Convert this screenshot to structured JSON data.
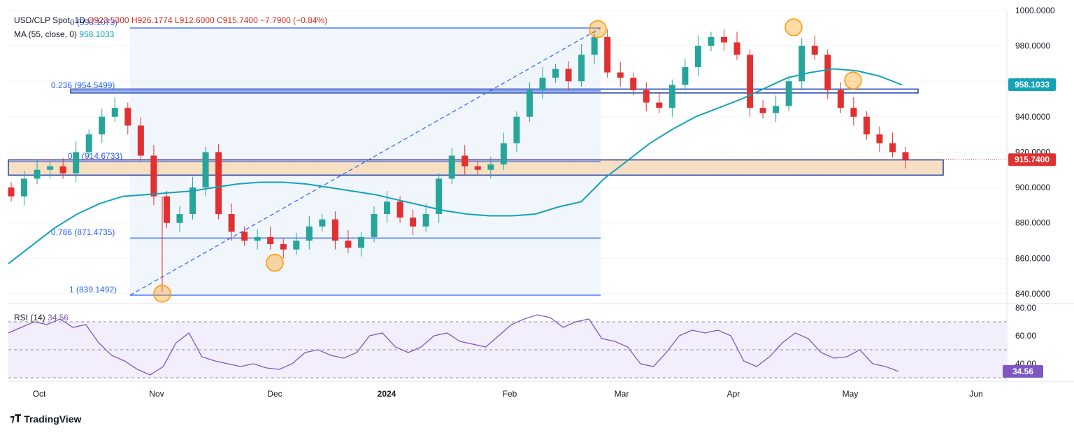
{
  "header": {
    "symbol": "USD/CLP Spot, 1D",
    "open": "O923.5300",
    "high": "H926.1774",
    "low": "L912.6000",
    "close": "C915.7400",
    "change": "−7.7900 (−0.84%)",
    "ma_label": "MA (55, close, 0)",
    "ma_value": "958.1033",
    "rsi_label": "RSI (14)",
    "rsi_value": "34.56"
  },
  "branding": {
    "name": "TradingView"
  },
  "colors": {
    "up": "#26a69a",
    "down": "#e03030",
    "ma": "#12a3b8",
    "rsi": "#7e57c2",
    "fib": "#2962ff",
    "zone": "#f6dfc3",
    "circle": "#ff9800"
  },
  "chart_data": [
    {
      "type": "candlestick",
      "title": "",
      "x_ticks": [
        "Oct",
        "Nov",
        "Dec",
        "2024",
        "Feb",
        "Mar",
        "Apr",
        "May",
        "Jun"
      ],
      "y_ticks": [
        "1000.0000",
        "980.0000",
        "960.0000",
        "940.0000",
        "920.0000",
        "900.0000",
        "880.0000",
        "860.0000",
        "840.0000"
      ],
      "ylim": [
        836,
        1000
      ],
      "last_price": "915.7400",
      "ma_price": "958.1033",
      "fibonacci": [
        {
          "level": "0",
          "label": "0 (990.1073)",
          "value": 990.1073
        },
        {
          "level": "0.236",
          "label": "0.236 (954.5499)",
          "value": 954.5499
        },
        {
          "level": "0.5",
          "label": "0.5 (914.6733)",
          "value": 914.6733
        },
        {
          "level": "0.786",
          "label": "0.786 (871.4735)",
          "value": 871.4735
        },
        {
          "level": "1",
          "label": "1 (839.1492)",
          "value": 839.1492
        }
      ],
      "ma_series": {
        "name": "MA (55, close, 0)",
        "values": [
          857,
          867,
          877,
          885,
          891,
          895,
          896,
          897,
          898,
          900,
          902,
          903,
          903,
          902,
          900,
          898,
          896,
          893,
          890,
          887,
          885,
          884,
          884,
          885,
          889,
          892,
          905,
          915,
          925,
          933,
          940,
          945,
          950,
          956,
          962,
          965,
          967,
          966,
          963,
          958
        ]
      },
      "candles_close": [
        895,
        905,
        910,
        912,
        908,
        920,
        930,
        940,
        945,
        935,
        918,
        895,
        880,
        885,
        900,
        920,
        885,
        875,
        870,
        872,
        868,
        865,
        870,
        878,
        882,
        870,
        866,
        872,
        885,
        892,
        883,
        878,
        885,
        905,
        918,
        912,
        910,
        913,
        925,
        940,
        955,
        962,
        967,
        960,
        975,
        985,
        965,
        962,
        955,
        948,
        945,
        958,
        968,
        980,
        985,
        982,
        975,
        945,
        942,
        946,
        960,
        980,
        975,
        955,
        945,
        940,
        930,
        925,
        920,
        915.74
      ]
    },
    {
      "type": "line",
      "title": "",
      "name": "RSI (14)",
      "y_ticks": [
        "80.00",
        "60.00",
        "40.00"
      ],
      "ylim": [
        30,
        80
      ],
      "bands": [
        70,
        50,
        30
      ],
      "last_value": "34.56",
      "values": [
        62,
        66,
        70,
        68,
        72,
        66,
        68,
        55,
        46,
        42,
        36,
        32,
        38,
        55,
        62,
        45,
        42,
        40,
        38,
        40,
        37,
        36,
        40,
        48,
        50,
        46,
        44,
        48,
        60,
        62,
        52,
        48,
        52,
        60,
        62,
        56,
        54,
        52,
        60,
        68,
        72,
        75,
        73,
        66,
        70,
        72,
        58,
        56,
        52,
        40,
        38,
        48,
        60,
        64,
        62,
        64,
        60,
        42,
        38,
        45,
        55,
        62,
        58,
        48,
        44,
        45,
        50,
        40,
        38,
        34.56
      ]
    }
  ]
}
